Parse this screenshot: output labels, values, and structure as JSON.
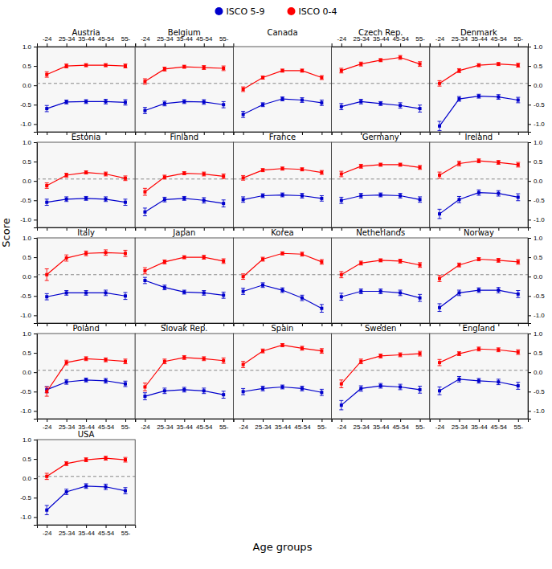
{
  "chart_data": {
    "type": "line",
    "xlabel": "Age groups",
    "ylabel": "Score",
    "categories": [
      "-24",
      "25-34",
      "35-44",
      "45-54",
      "55-"
    ],
    "ylim": [
      -1.2,
      1.0
    ],
    "yticks": [
      {
        "value": -1.0,
        "label": "-1.0"
      },
      {
        "value": -0.5,
        "label": "-0.5"
      },
      {
        "value": 0.0,
        "label": "0.0"
      },
      0.5,
      {
        "value": 1.0,
        "label": "1.0"
      }
    ],
    "reference_line": 0.05,
    "legend": "top",
    "marker": "square",
    "series": [
      {
        "name": "ISCO 5-9",
        "color": "#0000CC"
      },
      {
        "name": "ISCO 0-4",
        "color": "#FF0000"
      }
    ],
    "panels": [
      {
        "title": "Austria",
        "series": [
          {
            "values": [
              -0.6,
              -0.43,
              -0.42,
              -0.42,
              -0.44
            ],
            "errors": [
              0.08,
              0.05,
              0.05,
              0.06,
              0.07
            ]
          },
          {
            "values": [
              0.28,
              0.5,
              0.52,
              0.52,
              0.5
            ],
            "errors": [
              0.07,
              0.05,
              0.04,
              0.04,
              0.05
            ]
          }
        ]
      },
      {
        "title": "Belgium",
        "series": [
          {
            "values": [
              -0.65,
              -0.47,
              -0.42,
              -0.43,
              -0.5
            ],
            "errors": [
              0.08,
              0.06,
              0.05,
              0.06,
              0.08
            ]
          },
          {
            "values": [
              0.1,
              0.42,
              0.48,
              0.46,
              0.44
            ],
            "errors": [
              0.07,
              0.05,
              0.04,
              0.05,
              0.06
            ]
          }
        ]
      },
      {
        "title": "Canada",
        "series": [
          {
            "values": [
              -0.75,
              -0.5,
              -0.35,
              -0.38,
              -0.45
            ],
            "errors": [
              0.08,
              0.05,
              0.05,
              0.06,
              0.07
            ]
          },
          {
            "values": [
              -0.1,
              0.2,
              0.38,
              0.38,
              0.2
            ],
            "errors": [
              0.06,
              0.04,
              0.04,
              0.04,
              0.05
            ]
          }
        ]
      },
      {
        "title": "Czech Rep.",
        "series": [
          {
            "values": [
              -0.55,
              -0.42,
              -0.47,
              -0.52,
              -0.6
            ],
            "errors": [
              0.08,
              0.06,
              0.05,
              0.07,
              0.09
            ]
          },
          {
            "values": [
              0.38,
              0.55,
              0.65,
              0.72,
              0.55
            ],
            "errors": [
              0.06,
              0.05,
              0.04,
              0.05,
              0.06
            ]
          }
        ]
      },
      {
        "title": "Denmark",
        "series": [
          {
            "values": [
              -1.05,
              -0.35,
              -0.28,
              -0.3,
              -0.38
            ],
            "errors": [
              0.12,
              0.06,
              0.05,
              0.06,
              0.07
            ]
          },
          {
            "values": [
              0.05,
              0.38,
              0.52,
              0.55,
              0.52
            ],
            "errors": [
              0.07,
              0.05,
              0.04,
              0.04,
              0.05
            ]
          }
        ]
      },
      {
        "title": "Estonia",
        "series": [
          {
            "values": [
              -0.55,
              -0.47,
              -0.45,
              -0.47,
              -0.55
            ],
            "errors": [
              0.08,
              0.06,
              0.05,
              0.06,
              0.08
            ]
          },
          {
            "values": [
              -0.12,
              0.15,
              0.22,
              0.18,
              0.07
            ],
            "errors": [
              0.07,
              0.05,
              0.04,
              0.05,
              0.06
            ]
          }
        ]
      },
      {
        "title": "Finland",
        "series": [
          {
            "values": [
              -0.8,
              -0.48,
              -0.45,
              -0.5,
              -0.58
            ],
            "errors": [
              0.1,
              0.06,
              0.05,
              0.07,
              0.09
            ]
          },
          {
            "values": [
              -0.28,
              0.1,
              0.2,
              0.18,
              0.12
            ],
            "errors": [
              0.09,
              0.05,
              0.04,
              0.05,
              0.06
            ]
          }
        ]
      },
      {
        "title": "France",
        "series": [
          {
            "values": [
              -0.48,
              -0.38,
              -0.36,
              -0.38,
              -0.45
            ],
            "errors": [
              0.07,
              0.05,
              0.05,
              0.06,
              0.07
            ]
          },
          {
            "values": [
              0.08,
              0.28,
              0.32,
              0.3,
              0.22
            ],
            "errors": [
              0.06,
              0.04,
              0.04,
              0.04,
              0.05
            ]
          }
        ]
      },
      {
        "title": "Germany",
        "series": [
          {
            "values": [
              -0.5,
              -0.38,
              -0.36,
              -0.38,
              -0.48
            ],
            "errors": [
              0.08,
              0.06,
              0.05,
              0.06,
              0.07
            ]
          },
          {
            "values": [
              0.18,
              0.38,
              0.42,
              0.42,
              0.35
            ],
            "errors": [
              0.07,
              0.05,
              0.04,
              0.04,
              0.05
            ]
          }
        ]
      },
      {
        "title": "Ireland",
        "series": [
          {
            "values": [
              -0.85,
              -0.48,
              -0.3,
              -0.32,
              -0.42
            ],
            "errors": [
              0.12,
              0.08,
              0.07,
              0.07,
              0.09
            ]
          },
          {
            "values": [
              0.15,
              0.45,
              0.52,
              0.48,
              0.42
            ],
            "errors": [
              0.08,
              0.06,
              0.05,
              0.05,
              0.06
            ]
          }
        ]
      },
      {
        "title": "Italy",
        "series": [
          {
            "values": [
              -0.52,
              -0.42,
              -0.42,
              -0.42,
              -0.5
            ],
            "errors": [
              0.08,
              0.06,
              0.06,
              0.07,
              0.09
            ]
          },
          {
            "values": [
              0.05,
              0.48,
              0.6,
              0.62,
              0.6
            ],
            "errors": [
              0.15,
              0.08,
              0.06,
              0.07,
              0.08
            ]
          }
        ]
      },
      {
        "title": "Japan",
        "series": [
          {
            "values": [
              -0.1,
              -0.28,
              -0.4,
              -0.42,
              -0.48
            ],
            "errors": [
              0.08,
              0.06,
              0.05,
              0.06,
              0.08
            ]
          },
          {
            "values": [
              0.15,
              0.38,
              0.5,
              0.5,
              0.4
            ],
            "errors": [
              0.08,
              0.05,
              0.04,
              0.05,
              0.06
            ]
          }
        ]
      },
      {
        "title": "Korea",
        "series": [
          {
            "values": [
              -0.38,
              -0.22,
              -0.35,
              -0.55,
              -0.82
            ],
            "errors": [
              0.08,
              0.06,
              0.06,
              0.07,
              0.1
            ]
          },
          {
            "values": [
              0.0,
              0.45,
              0.6,
              0.58,
              0.38
            ],
            "errors": [
              0.07,
              0.05,
              0.04,
              0.05,
              0.06
            ]
          }
        ]
      },
      {
        "title": "Netherlands",
        "series": [
          {
            "values": [
              -0.52,
              -0.38,
              -0.38,
              -0.42,
              -0.55
            ],
            "errors": [
              0.09,
              0.06,
              0.06,
              0.07,
              0.09
            ]
          },
          {
            "values": [
              0.05,
              0.35,
              0.42,
              0.4,
              0.3
            ],
            "errors": [
              0.08,
              0.05,
              0.04,
              0.05,
              0.06
            ]
          }
        ]
      },
      {
        "title": "Norway",
        "series": [
          {
            "values": [
              -0.8,
              -0.42,
              -0.35,
              -0.35,
              -0.45
            ],
            "errors": [
              0.1,
              0.07,
              0.06,
              0.07,
              0.09
            ]
          },
          {
            "values": [
              -0.05,
              0.3,
              0.45,
              0.42,
              0.38
            ],
            "errors": [
              0.08,
              0.05,
              0.04,
              0.05,
              0.06
            ]
          }
        ]
      },
      {
        "title": "Poland",
        "series": [
          {
            "values": [
              -0.45,
              -0.25,
              -0.2,
              -0.22,
              -0.3
            ],
            "errors": [
              0.08,
              0.06,
              0.05,
              0.06,
              0.07
            ]
          },
          {
            "values": [
              -0.5,
              0.25,
              0.35,
              0.32,
              0.28
            ],
            "errors": [
              0.12,
              0.06,
              0.05,
              0.05,
              0.06
            ]
          }
        ]
      },
      {
        "title": "Slovak Rep.",
        "series": [
          {
            "values": [
              -0.62,
              -0.48,
              -0.45,
              -0.48,
              -0.58
            ],
            "errors": [
              0.09,
              0.07,
              0.06,
              0.07,
              0.09
            ]
          },
          {
            "values": [
              -0.38,
              0.28,
              0.38,
              0.35,
              0.3
            ],
            "errors": [
              0.1,
              0.06,
              0.05,
              0.05,
              0.07
            ]
          }
        ]
      },
      {
        "title": "Spain",
        "series": [
          {
            "values": [
              -0.5,
              -0.42,
              -0.38,
              -0.42,
              -0.52
            ],
            "errors": [
              0.08,
              0.06,
              0.05,
              0.06,
              0.08
            ]
          },
          {
            "values": [
              0.2,
              0.55,
              0.7,
              0.62,
              0.55
            ],
            "errors": [
              0.08,
              0.05,
              0.04,
              0.05,
              0.06
            ]
          }
        ]
      },
      {
        "title": "Sweden",
        "series": [
          {
            "values": [
              -0.85,
              -0.42,
              -0.35,
              -0.38,
              -0.45
            ],
            "errors": [
              0.12,
              0.07,
              0.06,
              0.07,
              0.09
            ]
          },
          {
            "values": [
              -0.3,
              0.28,
              0.42,
              0.45,
              0.48
            ],
            "errors": [
              0.1,
              0.06,
              0.05,
              0.05,
              0.06
            ]
          }
        ]
      },
      {
        "title": "England",
        "series": [
          {
            "values": [
              -0.48,
              -0.18,
              -0.22,
              -0.25,
              -0.35
            ],
            "errors": [
              0.1,
              0.07,
              0.06,
              0.07,
              0.09
            ]
          },
          {
            "values": [
              0.25,
              0.48,
              0.6,
              0.58,
              0.52
            ],
            "errors": [
              0.08,
              0.05,
              0.05,
              0.05,
              0.06
            ]
          }
        ]
      },
      {
        "title": "USA",
        "series": [
          {
            "values": [
              -0.82,
              -0.35,
              -0.2,
              -0.22,
              -0.32
            ],
            "errors": [
              0.12,
              0.07,
              0.06,
              0.07,
              0.08
            ]
          },
          {
            "values": [
              0.05,
              0.38,
              0.48,
              0.52,
              0.48
            ],
            "errors": [
              0.08,
              0.05,
              0.05,
              0.05,
              0.06
            ]
          }
        ]
      }
    ]
  }
}
